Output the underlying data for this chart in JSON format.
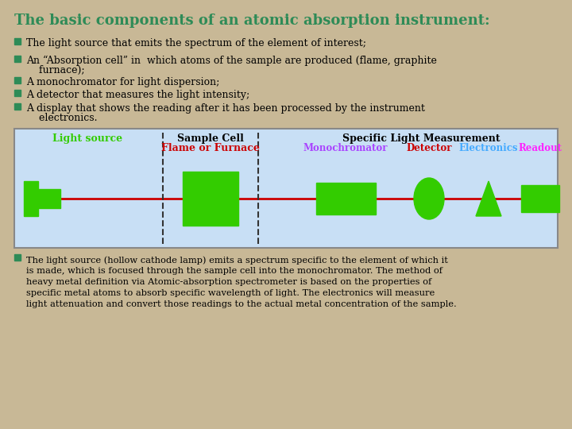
{
  "title": "The basic components of an atomic absorption instrument:",
  "title_color": "#2e8b57",
  "background_color": "#c8b896",
  "bullet_color": "#2e8b57",
  "diagram_bg": "#c8dff5",
  "red_line_color": "#cc0000",
  "green_color": "#33cc00",
  "label_light_source": "Light source",
  "label_sample_cell": "Sample Cell",
  "label_flame": "Flame or Furnace",
  "label_specific": "Specific Light Measurement",
  "label_mono": "Monochromator",
  "label_detector": "Detector",
  "label_electronics": "Electronics",
  "label_readout": "Readout",
  "label_light_source_color": "#33cc00",
  "label_sample_cell_color": "#000000",
  "label_flame_color": "#cc0000",
  "label_specific_color": "#000000",
  "label_mono_color": "#aa44ff",
  "label_detector_color": "#cc0000",
  "label_electronics_color": "#44aaff",
  "label_readout_color": "#ff22ff",
  "bottom_bullet_color": "#2e8b57",
  "bullet_items": [
    "The light source that emits the spectrum of the element of interest;",
    "An “Absorption cell” in  which atoms of the sample are produced (flame, graphite furnace);",
    "A monochromator for light dispersion;",
    "A detector that measures the light intensity;",
    "A display that shows the reading after it has been processed by the instrument electronics."
  ],
  "bottom_text_line1": "The light source (hollow cathode lamp) emits a spectrum specific to the element of which it",
  "bottom_text_line2": "is made, which is focused through the sample cell into the monochromator. The method of",
  "bottom_text_line3": "heavy metal definition via Atomic-absorption spectrometer is based on the properties of",
  "bottom_text_line4": "specific metal atoms to absorb specific wavelength of light. The electronics will measure",
  "bottom_text_line5": "light attenuation and convert those readings to the actual metal concentration of the sample."
}
